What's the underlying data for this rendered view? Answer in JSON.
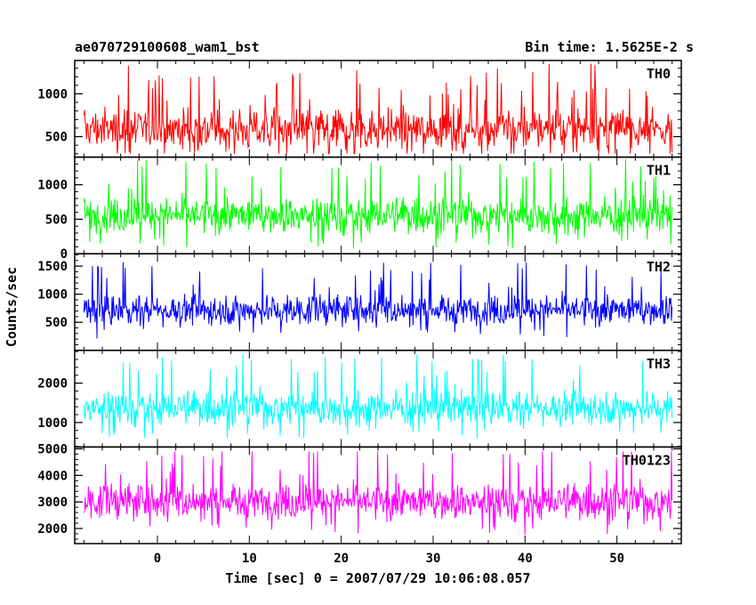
{
  "header": {
    "obs_id": "ae070729100608_wam1_bst",
    "bin_time": "Bin time: 1.5625E-2 s"
  },
  "chart_data": {
    "type": "line",
    "title": "ae070729100608_wam1_bst",
    "subtitle": "Bin time: 1.5625E-2 s",
    "xlabel": "Time [sec] 0 = 2007/07/29 10:06:08.057",
    "ylabel": "Counts/sec",
    "xlim": [
      -9,
      57
    ],
    "x_ticks": [
      0,
      10,
      20,
      30,
      40,
      50
    ],
    "x_data_range": [
      -8,
      56
    ],
    "grid": false,
    "legend": "none (panel labels top-right)",
    "panels": [
      {
        "name": "TH0",
        "color": "#ff0000",
        "ylim": [
          260,
          1390
        ],
        "y_ticks": [
          500,
          1000
        ],
        "mean": 590,
        "spread": 170,
        "low_extreme": 300,
        "high_extreme": 1390
      },
      {
        "name": "TH1",
        "color": "#00ff00",
        "ylim": [
          0,
          1400
        ],
        "y_ticks": [
          0,
          500,
          1000
        ],
        "mean": 560,
        "spread": 180,
        "low_extreme": 70,
        "high_extreme": 1400
      },
      {
        "name": "TH2",
        "color": "#0000ff",
        "ylim": [
          0,
          1720
        ],
        "y_ticks": [
          500,
          1000,
          1500
        ],
        "mean": 720,
        "spread": 190,
        "low_extreme": 70,
        "high_extreme": 1720
      },
      {
        "name": "TH3",
        "color": "#00ffff",
        "ylim": [
          380,
          2830
        ],
        "y_ticks": [
          1000,
          2000
        ],
        "mean": 1380,
        "spread": 300,
        "low_extreme": 600,
        "high_extreme": 2830
      },
      {
        "name": "TH0123",
        "color": "#ff00ff",
        "ylim": [
          1430,
          5070
        ],
        "y_ticks": [
          2000,
          3000,
          4000,
          5000
        ],
        "mean": 3020,
        "spread": 470,
        "low_extreme": 1500,
        "high_extreme": 4900
      }
    ]
  }
}
